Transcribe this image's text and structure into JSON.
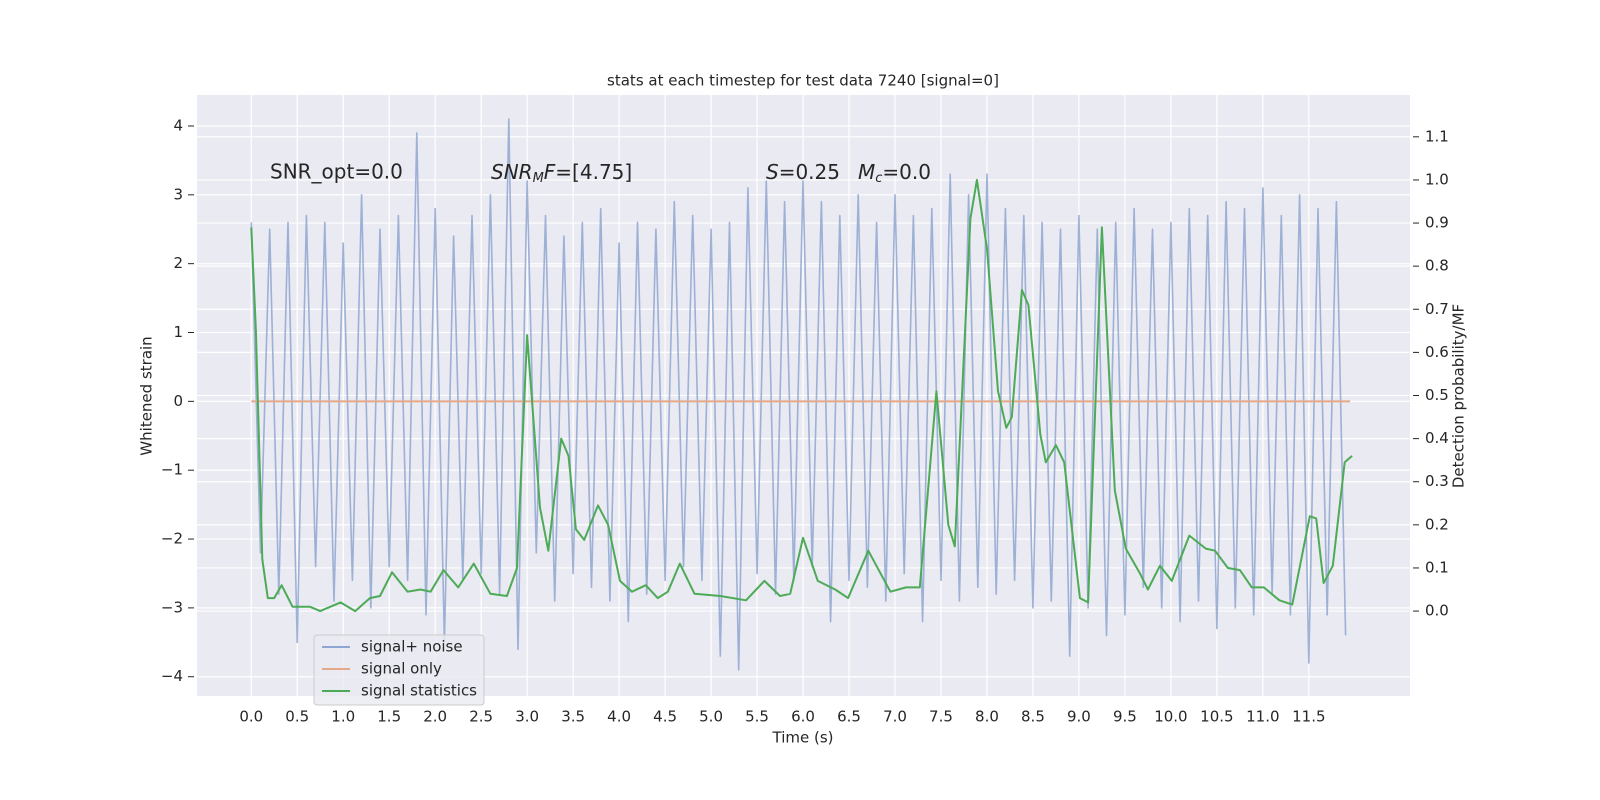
{
  "chart_data": {
    "type": "line",
    "title": "stats at each timestep for test data 7240 [signal=0]",
    "xlabel": "Time (s)",
    "ylabel": "Whitened strain",
    "y2label": "Detection probability/MF",
    "annotations": [
      "SNR_opt=0.0",
      [
        "SNR",
        "M",
        "F",
        "=[4.75]"
      ],
      [
        "S",
        "=0.25"
      ],
      [
        "M",
        "c",
        "=0.0"
      ]
    ],
    "xlim": [
      -0.59,
      12.6
    ],
    "ylim": [
      -4.28,
      4.45
    ],
    "y2lim": [
      -0.197,
      1.197
    ],
    "xticks": [
      {
        "value": 0,
        "label": "0.0"
      },
      {
        "value": 0.5,
        "label": "0.5"
      },
      {
        "value": 1,
        "label": "1.0"
      },
      {
        "value": 1.5,
        "label": "1.5"
      },
      {
        "value": 2,
        "label": "2.0"
      },
      {
        "value": 2.5,
        "label": "2.5"
      },
      {
        "value": 3,
        "label": "3.0"
      },
      {
        "value": 3.5,
        "label": "3.5"
      },
      {
        "value": 4,
        "label": "4.0"
      },
      {
        "value": 4.5,
        "label": "4.5"
      },
      {
        "value": 5,
        "label": "5.0"
      },
      {
        "value": 5.5,
        "label": "5.5"
      },
      {
        "value": 6,
        "label": "6.0"
      },
      {
        "value": 6.5,
        "label": "6.5"
      },
      {
        "value": 7,
        "label": "7.0"
      },
      {
        "value": 7.5,
        "label": "7.5"
      },
      {
        "value": 8,
        "label": "8.0"
      },
      {
        "value": 8.5,
        "label": "8.5"
      },
      {
        "value": 9,
        "label": "9.0"
      },
      {
        "value": 9.5,
        "label": "9.5"
      },
      {
        "value": 10,
        "label": "10.0"
      },
      {
        "value": 10.5,
        "label": "10.5"
      },
      {
        "value": 11,
        "label": "11.0"
      },
      {
        "value": 11.5,
        "label": "11.5"
      }
    ],
    "yticks": [
      {
        "value": -4,
        "label": "−4"
      },
      {
        "value": -3,
        "label": "−3"
      },
      {
        "value": -2,
        "label": "−2"
      },
      {
        "value": -1,
        "label": "−1"
      },
      0,
      1,
      2,
      3,
      4
    ],
    "y2ticks": [
      {
        "value": 0,
        "label": "0.0"
      },
      {
        "value": 0.1,
        "label": "0.1"
      },
      {
        "value": 0.2,
        "label": "0.2"
      },
      {
        "value": 0.3,
        "label": "0.3"
      },
      {
        "value": 0.4,
        "label": "0.4"
      },
      {
        "value": 0.5,
        "label": "0.5"
      },
      {
        "value": 0.6,
        "label": "0.6"
      },
      {
        "value": 0.7,
        "label": "0.7"
      },
      {
        "value": 0.8,
        "label": "0.8"
      },
      {
        "value": 0.9,
        "label": "0.9"
      },
      {
        "value": 1,
        "label": "1.0"
      },
      {
        "value": 1.1,
        "label": "1.1"
      }
    ],
    "grid": true,
    "legend": "lower left",
    "series": [
      {
        "name": "signal+ noise",
        "color": "#8fa6d0",
        "x": [
          0,
          0.1,
          0.2,
          0.3,
          0.4,
          0.5,
          0.6,
          0.7,
          0.8,
          0.9,
          1,
          1.1,
          1.2,
          1.3,
          1.4,
          1.5,
          1.6,
          1.7,
          1.8,
          1.9,
          2,
          2.1,
          2.2,
          2.3,
          2.4,
          2.5,
          2.6,
          2.7,
          2.8,
          2.9,
          3,
          3.1,
          3.2,
          3.3,
          3.4,
          3.5,
          3.6,
          3.7,
          3.8,
          3.9,
          4,
          4.1,
          4.2,
          4.3,
          4.4,
          4.5,
          4.6,
          4.7,
          4.8,
          4.9,
          5,
          5.1,
          5.2,
          5.3,
          5.4,
          5.5,
          5.6,
          5.7,
          5.8,
          5.9,
          6,
          6.1,
          6.2,
          6.3,
          6.4,
          6.5,
          6.6,
          6.7,
          6.8,
          6.9,
          7,
          7.1,
          7.2,
          7.3,
          7.4,
          7.5,
          7.6,
          7.7,
          7.8,
          7.9,
          8,
          8.1,
          8.2,
          8.3,
          8.4,
          8.5,
          8.6,
          8.7,
          8.8,
          8.9,
          9,
          9.1,
          9.2,
          9.3,
          9.4,
          9.5,
          9.6,
          9.7,
          9.8,
          9.9,
          10,
          10.1,
          10.2,
          10.3,
          10.4,
          10.5,
          10.6,
          10.7,
          10.8,
          10.9,
          11,
          11.1,
          11.2,
          11.3,
          11.4,
          11.5,
          11.6,
          11.7,
          11.8,
          11.9
        ],
        "values": [
          2.6,
          -2.2,
          2.5,
          -2.8,
          2.6,
          -3.5,
          2.7,
          -2.4,
          2.6,
          -2.9,
          2.3,
          -2.6,
          3.0,
          -3.0,
          2.5,
          -2.4,
          2.7,
          -2.6,
          3.9,
          -3.1,
          2.8,
          -3.5,
          2.4,
          -2.6,
          2.7,
          -2.5,
          3.0,
          -2.8,
          4.1,
          -3.6,
          3.2,
          -2.2,
          2.7,
          -2.9,
          2.4,
          -2.5,
          2.6,
          -2.7,
          2.8,
          -2.9,
          2.3,
          -3.2,
          2.6,
          -2.8,
          2.5,
          -2.6,
          2.9,
          -2.4,
          2.7,
          -2.6,
          2.5,
          -3.7,
          2.6,
          -3.9,
          3.1,
          -2.5,
          3.2,
          -2.8,
          2.9,
          -2.6,
          3.2,
          -2.4,
          2.9,
          -3.2,
          2.7,
          -2.6,
          3.0,
          -2.7,
          2.6,
          -2.9,
          3.0,
          -2.5,
          2.7,
          -3.2,
          2.8,
          -2.6,
          3.3,
          -2.9,
          3.0,
          -2.7,
          3.3,
          -2.8,
          2.8,
          -2.6,
          2.7,
          -3.0,
          2.6,
          -2.9,
          2.5,
          -3.7,
          2.7,
          -3.0,
          2.5,
          -3.4,
          2.6,
          -3.1,
          2.8,
          -2.7,
          2.5,
          -3.0,
          2.6,
          -3.2,
          2.8,
          -2.9,
          2.7,
          -3.3,
          2.9,
          -3.0,
          2.8,
          -3.1,
          3.1,
          -2.8,
          2.7,
          -3.1,
          3.0,
          -3.8,
          2.8,
          -3.1,
          2.9,
          -3.4
        ]
      },
      {
        "name": "signal only",
        "color": "#e5a98a",
        "x": [
          0,
          11.95
        ],
        "values": [
          0,
          0
        ]
      },
      {
        "name": "signal statistics",
        "color": "#4daa57",
        "axis": "y2",
        "x": [
          0,
          0.05,
          0.12,
          0.18,
          0.25,
          0.33,
          0.45,
          0.64,
          0.75,
          0.97,
          1.13,
          1.29,
          1.4,
          1.53,
          1.7,
          1.84,
          1.95,
          2.09,
          2.25,
          2.42,
          2.6,
          2.78,
          2.89,
          3.0,
          3.14,
          3.23,
          3.37,
          3.45,
          3.53,
          3.62,
          3.77,
          3.88,
          4.01,
          4.14,
          4.29,
          4.42,
          4.53,
          4.66,
          4.82,
          5.1,
          5.38,
          5.58,
          5.75,
          5.86,
          6.0,
          6.16,
          6.35,
          6.49,
          6.71,
          6.95,
          7.12,
          7.27,
          7.45,
          7.58,
          7.65,
          7.82,
          7.89,
          8.0,
          8.12,
          8.21,
          8.27,
          8.38,
          8.45,
          8.58,
          8.64,
          8.75,
          8.84,
          9.01,
          9.1,
          9.25,
          9.39,
          9.51,
          9.67,
          9.75,
          9.88,
          10.01,
          10.2,
          10.38,
          10.48,
          10.62,
          10.75,
          10.88,
          11.01,
          11.18,
          11.32,
          11.51,
          11.58,
          11.66,
          11.76,
          11.89,
          11.97
        ],
        "values": [
          0.89,
          0.65,
          0.12,
          0.03,
          0.03,
          0.06,
          0.01,
          0.01,
          0.0,
          0.02,
          0.0,
          0.03,
          0.035,
          0.09,
          0.045,
          0.05,
          0.045,
          0.095,
          0.055,
          0.11,
          0.04,
          0.035,
          0.1,
          0.64,
          0.24,
          0.14,
          0.4,
          0.36,
          0.19,
          0.165,
          0.245,
          0.2,
          0.07,
          0.045,
          0.06,
          0.03,
          0.045,
          0.11,
          0.04,
          0.035,
          0.025,
          0.07,
          0.035,
          0.04,
          0.17,
          0.07,
          0.05,
          0.03,
          0.14,
          0.045,
          0.055,
          0.055,
          0.51,
          0.2,
          0.15,
          0.91,
          1.0,
          0.84,
          0.51,
          0.425,
          0.45,
          0.745,
          0.71,
          0.41,
          0.345,
          0.385,
          0.345,
          0.03,
          0.02,
          0.89,
          0.28,
          0.145,
          0.085,
          0.05,
          0.105,
          0.07,
          0.175,
          0.145,
          0.14,
          0.1,
          0.095,
          0.055,
          0.055,
          0.025,
          0.015,
          0.22,
          0.215,
          0.065,
          0.105,
          0.345,
          0.36
        ]
      }
    ]
  }
}
